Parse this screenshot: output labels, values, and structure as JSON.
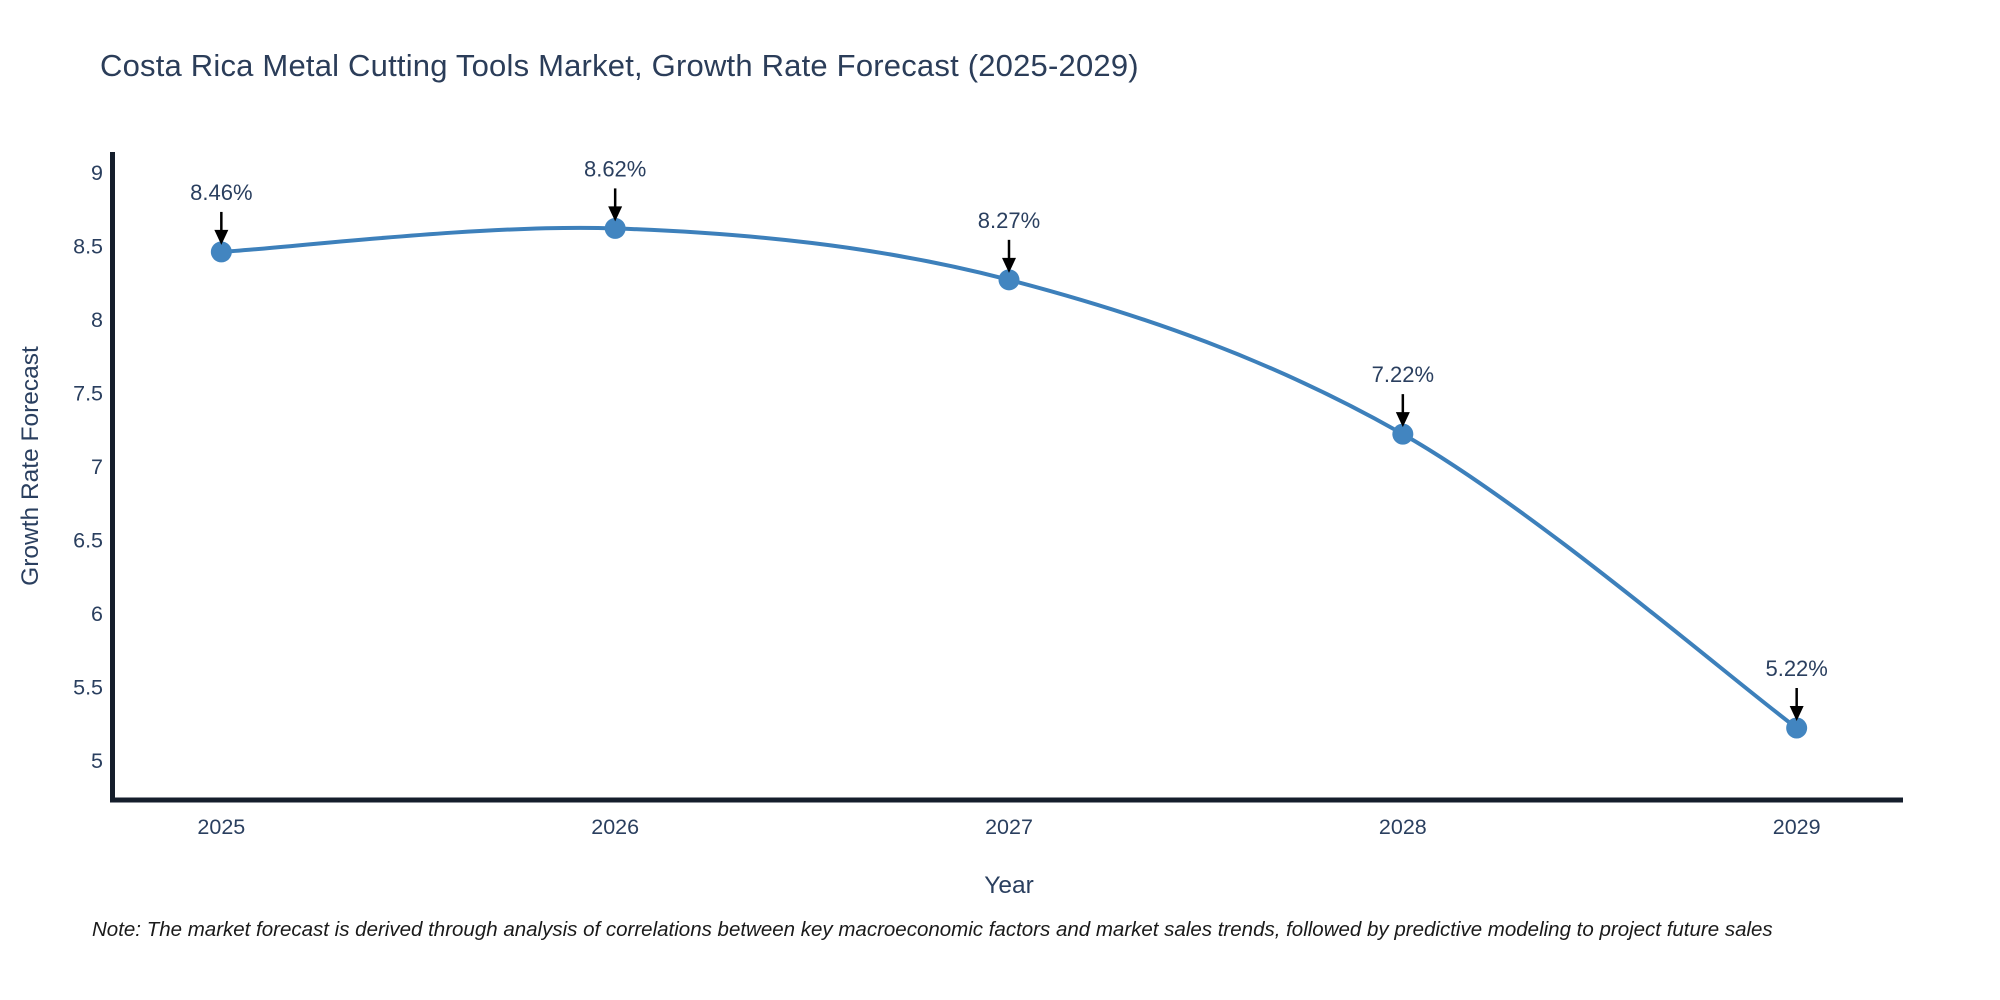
{
  "title": "Costa Rica Metal Cutting Tools Market, Growth Rate Forecast (2025-2029)",
  "note": "Note: The market forecast is derived through analysis of correlations between key macroeconomic factors and market sales trends, followed by predictive modeling to project future sales",
  "chart_data": {
    "type": "line",
    "title": "Costa Rica Metal Cutting Tools Market, Growth Rate Forecast (2025-2029)",
    "xlabel": "Year",
    "ylabel": "Growth Rate Forecast",
    "x": [
      2025,
      2026,
      2027,
      2028,
      2029
    ],
    "values": [
      8.46,
      8.62,
      8.27,
      7.22,
      5.22
    ],
    "point_labels": [
      "8.46%",
      "8.62%",
      "8.27%",
      "7.22%",
      "5.22%"
    ],
    "xtick_labels": [
      "2025",
      "2026",
      "2027",
      "2028",
      "2029"
    ],
    "ytick_values": [
      5,
      5.5,
      6,
      6.5,
      7,
      7.5,
      8,
      8.5,
      9
    ],
    "ytick_labels": [
      "5",
      "5.5",
      "6",
      "6.5",
      "7",
      "7.5",
      "8",
      "8.5",
      "9"
    ],
    "xlim": [
      2024.73,
      2029.27
    ],
    "ylim": [
      4.73,
      9.14
    ],
    "line_shape": "spline",
    "grid": false,
    "legend_position": "none",
    "colors": {
      "line": "#3d80bb",
      "marker": "#4285c0",
      "axis_line": "#151e2c",
      "annotation_arrow": "#000000",
      "text": "#2a3f5f"
    }
  }
}
